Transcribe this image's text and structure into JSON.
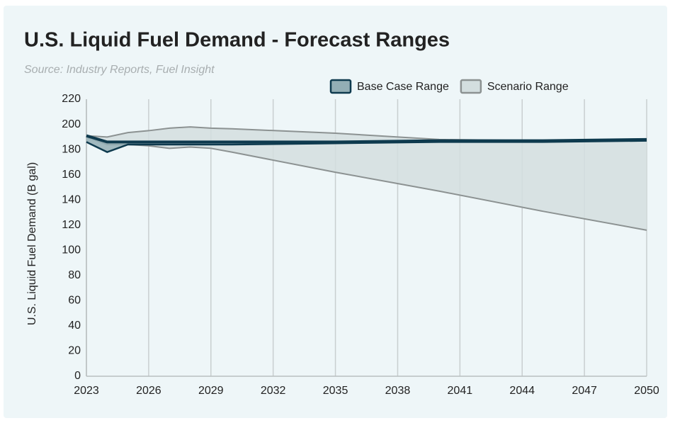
{
  "chart_data": {
    "type": "range-area",
    "title": "U.S. Liquid Fuel Demand - Forecast Ranges",
    "subtitle": "Source: Industry Reports, Fuel Insight",
    "y_label": "U.S. Liquid Fuel Demand (B gal)",
    "x": [
      2023,
      2024,
      2025,
      2026,
      2027,
      2028,
      2029,
      2030,
      2035,
      2040,
      2045,
      2050
    ],
    "series": [
      {
        "name": "Scenario Range",
        "color": "#d3dedf",
        "line_color": "#8c9292",
        "low": [
          190,
          184,
          184,
          183,
          181,
          182,
          181,
          178,
          162,
          147,
          131,
          116
        ],
        "high": [
          191,
          190,
          193.5,
          195,
          197,
          198,
          197,
          196.5,
          193,
          188,
          187,
          187
        ]
      },
      {
        "name": "Base Case Range",
        "color": "#93aeb5",
        "line_color": "#0e3a4e",
        "low": [
          186,
          178,
          184,
          184,
          184,
          184,
          184,
          184,
          185,
          186,
          186,
          187
        ],
        "high": [
          191,
          186,
          186,
          186,
          186,
          186,
          186,
          186,
          186,
          187,
          187,
          188
        ]
      }
    ],
    "xlim": [
      2023,
      2050
    ],
    "xticks": [
      2023,
      2026,
      2029,
      2032,
      2035,
      2038,
      2041,
      2044,
      2047,
      2050
    ],
    "ylim": [
      0,
      220
    ],
    "yticks": [
      0,
      20,
      40,
      60,
      80,
      100,
      120,
      140,
      160,
      180,
      200,
      220
    ],
    "grid": "x"
  }
}
